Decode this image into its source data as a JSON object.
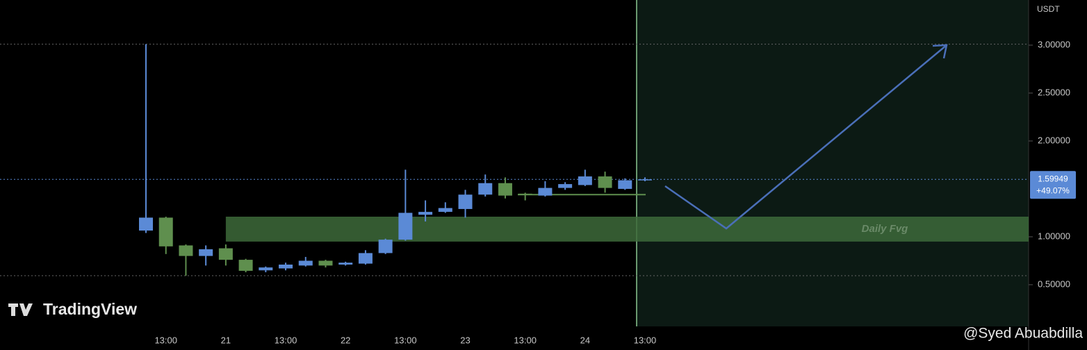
{
  "chart_data": {
    "type": "candlestick",
    "watermark": "TradingView",
    "credit": "@Syed Abuabdilla",
    "currency": "USDT",
    "categories": [
      null,
      "13:00",
      null,
      null,
      "21",
      null,
      null,
      "13:00",
      null,
      null,
      "22",
      null,
      null,
      "13:00",
      null,
      null,
      "23",
      null,
      null,
      "13:00",
      null,
      null,
      "24",
      null,
      null,
      "13:00"
    ],
    "open": [
      1.065,
      1.2,
      0.91,
      0.8,
      0.88,
      0.76,
      0.65,
      0.67,
      0.7,
      0.75,
      0.71,
      0.72,
      0.83,
      0.97,
      1.23,
      1.26,
      1.29,
      1.44,
      1.56,
      1.45,
      1.43,
      1.51,
      1.54,
      1.63,
      1.5,
      1.59
    ],
    "high": [
      3.01,
      1.21,
      0.92,
      0.91,
      0.92,
      0.77,
      0.69,
      0.73,
      0.79,
      0.76,
      0.74,
      0.86,
      0.98,
      1.7,
      1.38,
      1.36,
      1.49,
      1.65,
      1.62,
      1.46,
      1.58,
      1.57,
      1.7,
      1.68,
      1.61,
      1.62
    ],
    "low": [
      1.04,
      0.82,
      0.594,
      0.7,
      0.7,
      0.63,
      0.63,
      0.65,
      0.69,
      0.68,
      0.7,
      0.71,
      0.82,
      0.96,
      1.16,
      1.25,
      1.2,
      1.42,
      1.4,
      1.38,
      1.42,
      1.49,
      1.53,
      1.46,
      1.49,
      1.58
    ],
    "close": [
      1.2,
      0.9,
      0.8,
      0.87,
      0.76,
      0.645,
      0.68,
      0.71,
      0.75,
      0.7,
      0.73,
      0.83,
      0.97,
      1.25,
      1.26,
      1.3,
      1.44,
      1.56,
      1.43,
      1.44,
      1.51,
      1.55,
      1.63,
      1.51,
      1.59,
      1.59949
    ],
    "up_color": "#5b8ad6",
    "down_color": "#5f8f4e",
    "ylim": [
      0.065,
      3.471
    ],
    "yticks": [
      {
        "value": 0.5,
        "label": "0.50000"
      },
      {
        "value": 1,
        "label": "1.00000"
      },
      {
        "value": 2,
        "label": "2.00000"
      },
      {
        "value": 2.5,
        "label": "2.50000"
      },
      {
        "value": 3,
        "label": "3.00000"
      }
    ],
    "last_price": 1.59949,
    "last_change": {
      "value": 49.07,
      "label": "+49.07%"
    },
    "zone": {
      "label": "Daily Fvg",
      "range": [
        0.95,
        1.21
      ]
    },
    "level": 1.44,
    "grid": false
  }
}
